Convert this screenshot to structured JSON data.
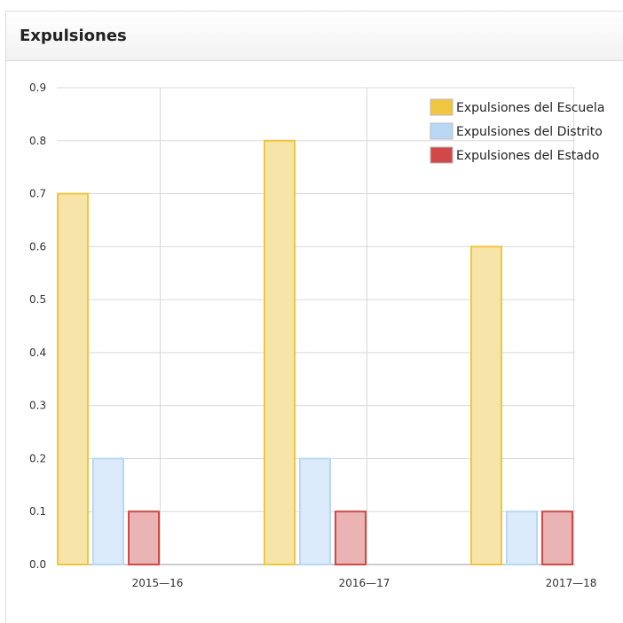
{
  "panel": {
    "title": "Expulsiones"
  },
  "chart_data": {
    "type": "bar",
    "title": "",
    "xlabel": "",
    "ylabel": "",
    "categories": [
      "2015—16",
      "2016—17",
      "2017—18"
    ],
    "ylim": [
      0,
      0.9
    ],
    "yticks": [
      "0.0",
      "0.1",
      "0.2",
      "0.3",
      "0.4",
      "0.5",
      "0.6",
      "0.7",
      "0.8",
      "0.9"
    ],
    "grid": true,
    "legend_position": "top-right",
    "series": [
      {
        "name": "Expulsiones del Escuela",
        "values": [
          0.7,
          0.8,
          0.6
        ],
        "color": "#f0c540",
        "fill": "#f7e4a8"
      },
      {
        "name": "Expulsiones del Distrito",
        "values": [
          0.2,
          0.2,
          0.1
        ],
        "color": "#b9d8f5",
        "fill": "#dcebfb"
      },
      {
        "name": "Expulsiones del Estado",
        "values": [
          0.1,
          0.1,
          0.1
        ],
        "color": "#d04848",
        "fill": "#eab4b4"
      }
    ]
  }
}
